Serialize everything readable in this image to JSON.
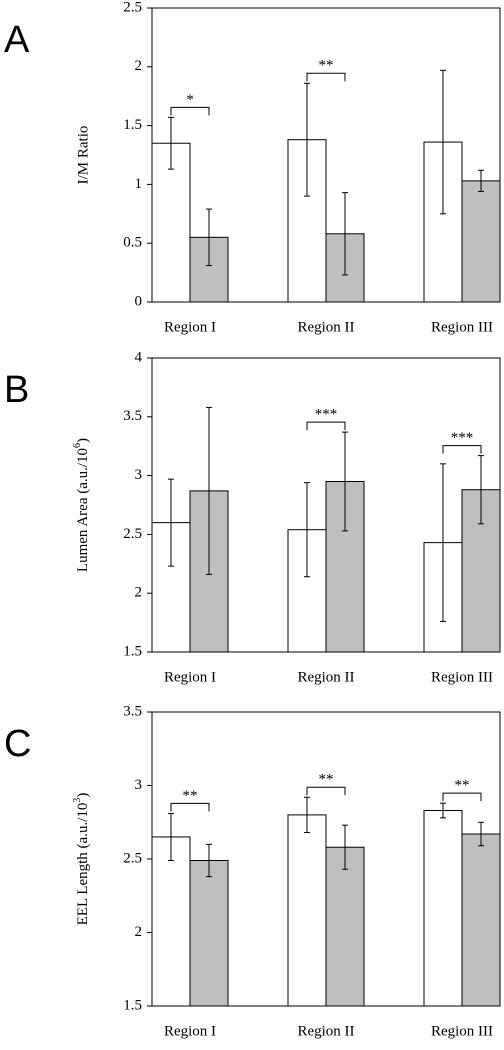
{
  "chart_data": [
    {
      "type": "bar",
      "panel": "A",
      "ylabel": "I/M Ratio",
      "categories": [
        "Region I",
        "Region II",
        "Region III"
      ],
      "series": [
        {
          "color": "#ffffff",
          "values": [
            1.35,
            1.38,
            1.36
          ],
          "errors": [
            0.22,
            0.48,
            0.61
          ]
        },
        {
          "color": "#bfbfbf",
          "values": [
            0.55,
            0.58,
            1.03
          ],
          "errors": [
            0.24,
            0.35,
            0.09
          ]
        }
      ],
      "significance": [
        "*",
        "**",
        null
      ],
      "ylim": [
        0,
        2.5
      ],
      "yticks": [
        0,
        0.5,
        1,
        1.5,
        2,
        2.5
      ]
    },
    {
      "type": "bar",
      "panel": "B",
      "ylabel": {
        "text": "Lumen Area (a.u./10",
        "sup": "6",
        "tail": ")"
      },
      "categories": [
        "Region I",
        "Region II",
        "Region III"
      ],
      "series": [
        {
          "color": "#ffffff",
          "values": [
            2.6,
            2.54,
            2.43
          ],
          "errors": [
            0.37,
            0.4,
            0.67
          ]
        },
        {
          "color": "#bfbfbf",
          "values": [
            2.87,
            2.95,
            2.88
          ],
          "errors": [
            0.71,
            0.42,
            0.29
          ]
        }
      ],
      "significance": [
        null,
        "***",
        "***"
      ],
      "ylim": [
        1.5,
        4
      ],
      "yticks": [
        1.5,
        2,
        2.5,
        3,
        3.5,
        4
      ]
    },
    {
      "type": "bar",
      "panel": "C",
      "ylabel": {
        "text": "EEL Length (a.u./10",
        "sup": "3",
        "tail": ")"
      },
      "categories": [
        "Region I",
        "Region II",
        "Region III"
      ],
      "series": [
        {
          "color": "#ffffff",
          "values": [
            2.65,
            2.8,
            2.83
          ],
          "errors": [
            0.16,
            0.12,
            0.05
          ]
        },
        {
          "color": "#bfbfbf",
          "values": [
            2.49,
            2.58,
            2.67
          ],
          "errors": [
            0.11,
            0.15,
            0.08
          ]
        }
      ],
      "significance": [
        "**",
        "**",
        "**"
      ],
      "ylim": [
        1.5,
        3.5
      ],
      "yticks": [
        1.5,
        2,
        2.5,
        3,
        3.5
      ]
    }
  ]
}
